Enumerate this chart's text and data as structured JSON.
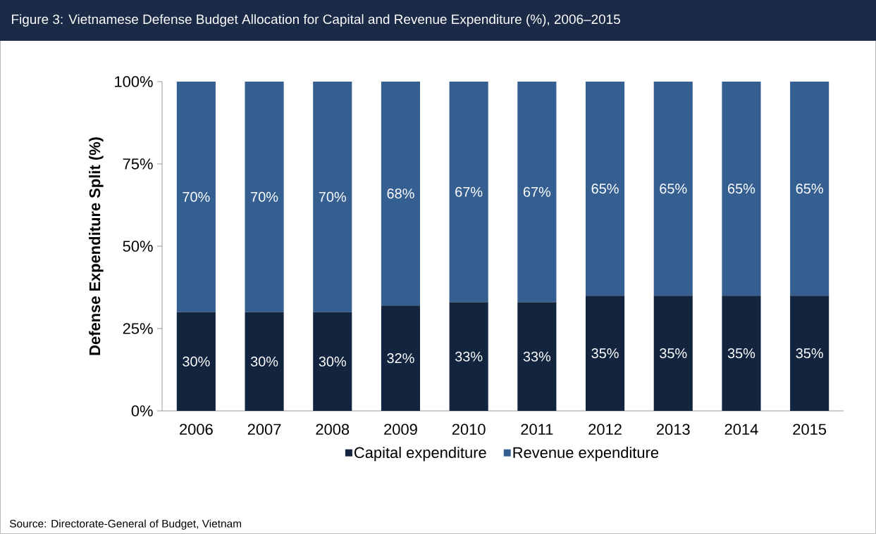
{
  "chart_data": {
    "type": "bar",
    "title": "Figure 3: Vietnamese Defense Budget Allocation for Capital and Revenue Expenditure (%), 2006–2015",
    "ylabel": "Defense  Expenditure Split (%)",
    "categories": [
      "2006",
      "2007",
      "2008",
      "2009",
      "2010",
      "2011",
      "2012",
      "2013",
      "2014",
      "2015"
    ],
    "series": [
      {
        "name": "Capital expenditure",
        "color": "#13243f",
        "values": [
          30,
          30,
          30,
          32,
          33,
          33,
          35,
          35,
          35,
          35
        ],
        "value_labels": [
          "30%",
          "30%",
          "30%",
          "32%",
          "33%",
          "33%",
          "35%",
          "35%",
          "35%",
          "35%"
        ]
      },
      {
        "name": "Revenue expenditure",
        "color": "#355f91",
        "values": [
          70,
          70,
          70,
          68,
          67,
          67,
          65,
          65,
          65,
          65
        ],
        "value_labels": [
          "70%",
          "70%",
          "70%",
          "68%",
          "67%",
          "67%",
          "65%",
          "65%",
          "65%",
          "65%"
        ]
      }
    ],
    "stacked": true,
    "ylim": [
      0,
      100
    ],
    "yticks": [
      {
        "value": 0,
        "label": "0%"
      },
      {
        "value": 25,
        "label": "25%"
      },
      {
        "value": 50,
        "label": "50%"
      },
      {
        "value": 75,
        "label": "75%"
      },
      {
        "value": 100,
        "label": "100%"
      }
    ],
    "legend": "bottom",
    "annotations": [
      "Source: Directorate-General of Budget, Vietnam"
    ]
  }
}
